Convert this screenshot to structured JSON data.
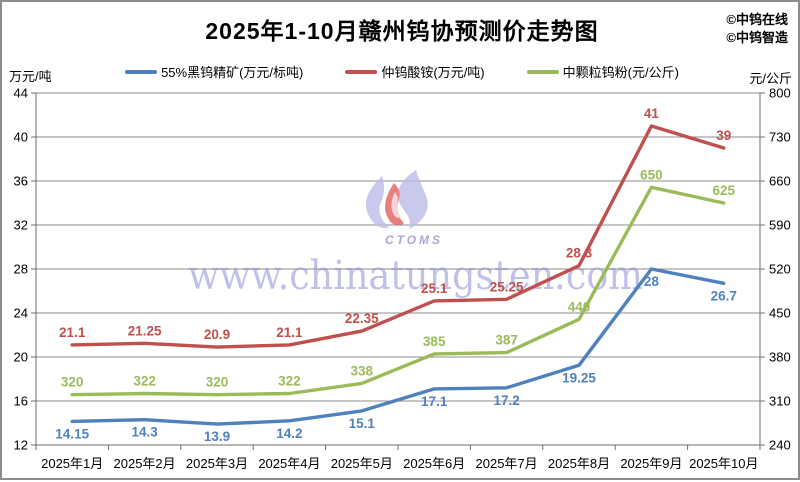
{
  "title": "2025年1-10月赣州钨协预测价走势图",
  "credits": [
    "©中钨在线",
    "©中钨智造"
  ],
  "watermark": {
    "url_text": "www.chinatungsten.com",
    "logo_text": "CTOMS"
  },
  "left_axis": {
    "unit": "万元/吨",
    "ticks": [
      44,
      40,
      36,
      32,
      28,
      24,
      20,
      16,
      12
    ]
  },
  "right_axis": {
    "unit": "元/公斤",
    "ticks": [
      800,
      730,
      660,
      590,
      520,
      450,
      380,
      310,
      240
    ]
  },
  "chart_data": {
    "type": "line",
    "title": "2025年1-10月赣州钨协预测价走势图",
    "categories": [
      "2025年1月",
      "2025年2月",
      "2025年3月",
      "2025年4月",
      "2025年5月",
      "2025年6月",
      "2025年7月",
      "2025年8月",
      "2025年9月",
      "2025年10月"
    ],
    "series": [
      {
        "name": "55%黑钨精矿(万元/标吨)",
        "axis": "left",
        "color": "#4F81BD",
        "label_position": "below",
        "values": [
          14.15,
          14.3,
          13.9,
          14.2,
          15.1,
          17.1,
          17.2,
          19.25,
          28,
          26.7
        ]
      },
      {
        "name": "仲钨酸铵(万元/吨)",
        "axis": "left",
        "color": "#C0504D",
        "label_position": "above",
        "values": [
          21.1,
          21.25,
          20.9,
          21.1,
          22.35,
          25.1,
          25.25,
          28.3,
          41,
          39
        ]
      },
      {
        "name": "中颗粒钨粉(元/公斤)",
        "axis": "right",
        "color": "#9BBB59",
        "label_position": "above",
        "values": [
          320,
          322,
          320,
          322,
          338,
          385,
          387,
          440,
          650,
          625
        ]
      }
    ],
    "left_ylim": [
      12,
      44
    ],
    "right_ylim": [
      240,
      800
    ],
    "grid": true,
    "legend_position": "top"
  }
}
